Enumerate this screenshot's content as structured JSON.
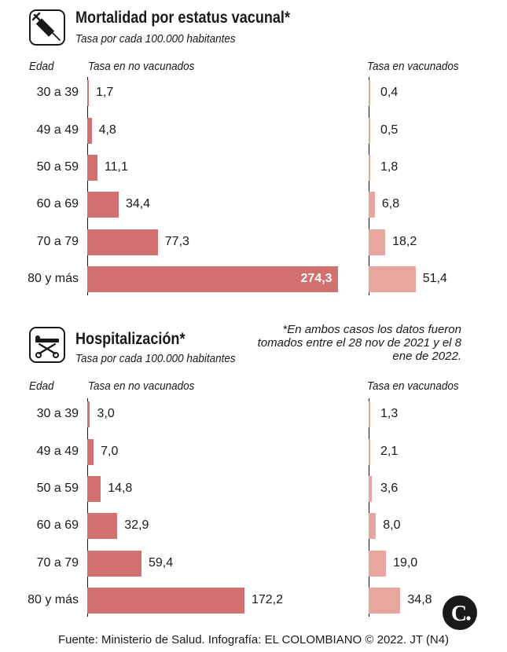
{
  "colors": {
    "unvax": "#d27070",
    "vax": "#e8a69f",
    "text": "#1a1a1a"
  },
  "icons": {
    "mortality": "syringe-icon",
    "hospital": "stretcher-icon",
    "logo": "el-colombiano-logo"
  },
  "note": "*En ambos casos los datos fueron tomados entre el 28 nov de 2021 y el 8 ene de 2022.",
  "source": "Fuente: Ministerio de Salud. Infografía: EL COLOMBIANO © 2022. JT (N4)",
  "chart_data": [
    {
      "type": "bar",
      "title": "Mortalidad por estatus vacunal*",
      "subtitle": "Tasa por cada 100.000 habitantes",
      "category_label": "Edad",
      "categories": [
        "30 a 39",
        "49 a 49",
        "50 a 59",
        "60 a 69",
        "70 a 79",
        "80 y más"
      ],
      "series": [
        {
          "name": "Tasa en no vacunados",
          "values": [
            1.7,
            4.8,
            11.1,
            34.4,
            77.3,
            274.3
          ],
          "labels": [
            "1,7",
            "4,8",
            "11,1",
            "34,4",
            "77,3",
            "274,3"
          ]
        },
        {
          "name": "Tasa en vacunados",
          "values": [
            0.4,
            0.5,
            1.8,
            6.8,
            18.2,
            51.4
          ],
          "labels": [
            "0,4",
            "0,5",
            "1,8",
            "6,8",
            "18,2",
            "51,4"
          ]
        }
      ]
    },
    {
      "type": "bar",
      "title": "Hospitalización*",
      "subtitle": "Tasa por cada 100.000 habitantes",
      "category_label": "Edad",
      "categories": [
        "30 a 39",
        "49 a 49",
        "50 a 59",
        "60 a 69",
        "70 a 79",
        "80 y más"
      ],
      "series": [
        {
          "name": "Tasa en no vacunados",
          "values": [
            3.0,
            7.0,
            14.8,
            32.9,
            59.4,
            172.2
          ],
          "labels": [
            "3,0",
            "7,0",
            "14,8",
            "32,9",
            "59,4",
            "172,2"
          ]
        },
        {
          "name": "Tasa en vacunados",
          "values": [
            1.3,
            2.1,
            3.6,
            8.0,
            19.0,
            34.8
          ],
          "labels": [
            "1,3",
            "2,1",
            "3,6",
            "8,0",
            "19,0",
            "34,8"
          ]
        }
      ]
    }
  ]
}
